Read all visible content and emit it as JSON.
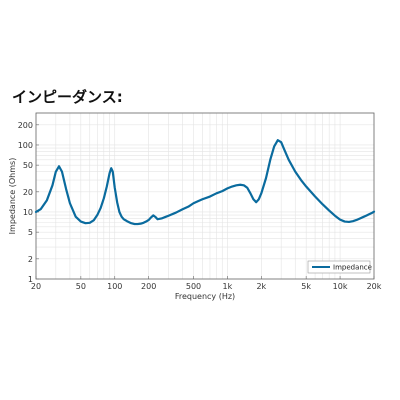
{
  "chart_data": {
    "type": "line",
    "title": "インピーダンス:",
    "xlabel": "Frequency (Hz)",
    "ylabel": "Impedance (Ohms)",
    "xscale": "log",
    "yscale": "log",
    "xlim": [
      20,
      20000
    ],
    "ylim": [
      1,
      300
    ],
    "grid": true,
    "legend_position": "bottom-right",
    "x_ticks": [
      {
        "value": 20,
        "label": "20"
      },
      {
        "value": 50,
        "label": "50"
      },
      {
        "value": 100,
        "label": "100"
      },
      {
        "value": 200,
        "label": "200"
      },
      {
        "value": 500,
        "label": "500"
      },
      {
        "value": 1000,
        "label": "1k"
      },
      {
        "value": 2000,
        "label": "2k"
      },
      {
        "value": 5000,
        "label": "5k"
      },
      {
        "value": 10000,
        "label": "10k"
      },
      {
        "value": 20000,
        "label": "20k"
      }
    ],
    "y_ticks": [
      {
        "value": 1,
        "label": "1"
      },
      {
        "value": 2,
        "label": "2"
      },
      {
        "value": 5,
        "label": "5"
      },
      {
        "value": 10,
        "label": "10"
      },
      {
        "value": 20,
        "label": "20"
      },
      {
        "value": 50,
        "label": "50"
      },
      {
        "value": 100,
        "label": "100"
      },
      {
        "value": 200,
        "label": "200"
      }
    ],
    "colors": {
      "line": "#0a6b9e",
      "grid": "#e4e4e4",
      "frame": "#666666"
    },
    "series": [
      {
        "name": "Impedance",
        "x": [
          20,
          22,
          25,
          28,
          30,
          32,
          34,
          37,
          40,
          45,
          50,
          55,
          60,
          65,
          70,
          75,
          80,
          85,
          90,
          93,
          96,
          100,
          105,
          110,
          115,
          120,
          125,
          130,
          140,
          150,
          160,
          170,
          180,
          190,
          200,
          210,
          220,
          230,
          240,
          250,
          260,
          280,
          300,
          350,
          400,
          450,
          500,
          550,
          600,
          700,
          800,
          900,
          1000,
          1100,
          1200,
          1300,
          1400,
          1500,
          1600,
          1700,
          1800,
          1900,
          2000,
          2200,
          2400,
          2600,
          2800,
          3000,
          3200,
          3500,
          4000,
          4500,
          5000,
          6000,
          7000,
          8000,
          9000,
          10000,
          11000,
          12000,
          13000,
          14000,
          15000,
          16000,
          17000,
          18000,
          19000,
          20000
        ],
        "y": [
          10,
          11,
          15,
          25,
          40,
          48,
          40,
          22,
          13.5,
          8.5,
          7.2,
          6.8,
          6.9,
          7.5,
          9,
          11.5,
          16,
          24,
          38,
          45,
          40,
          23,
          14,
          10,
          8.5,
          7.8,
          7.5,
          7.2,
          6.8,
          6.6,
          6.6,
          6.7,
          6.9,
          7.2,
          7.6,
          8.3,
          8.9,
          8.4,
          7.8,
          7.9,
          8,
          8.4,
          8.8,
          9.8,
          11,
          12,
          13.5,
          14.5,
          15.5,
          17,
          19,
          20.5,
          22.5,
          24,
          25,
          25.5,
          25,
          23,
          19,
          15.5,
          14,
          15.5,
          19,
          32,
          60,
          95,
          118,
          110,
          85,
          60,
          40,
          30,
          24,
          17,
          13,
          10.5,
          8.8,
          7.7,
          7.2,
          7.1,
          7.3,
          7.6,
          8,
          8.4,
          8.8,
          9.2,
          9.6,
          10.1
        ]
      }
    ]
  }
}
